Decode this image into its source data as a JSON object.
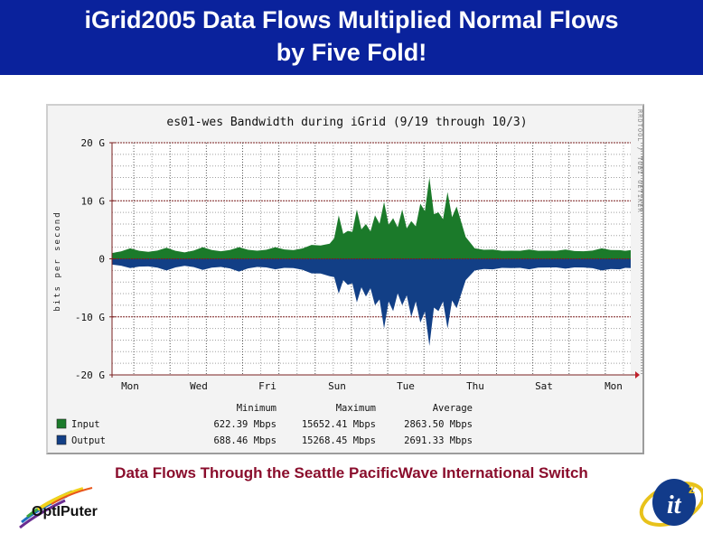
{
  "header": {
    "title_line1": "iGrid2005 Data Flows Multiplied Normal Flows",
    "title_line2": "by Five Fold!",
    "background": "#0a229c"
  },
  "caption": "Data Flows Through the Seattle PacificWave International Switch",
  "logos": {
    "left": "OptIPuter",
    "right": "it",
    "right_superscript": "2"
  },
  "chart_data": {
    "type": "area",
    "title": "es01-wes Bandwidth during iGrid (9/19 through 10/3)",
    "ylabel": "bits per second",
    "xlabel": "",
    "watermark": "RRDTOOL / TOBI OETIKER",
    "ylim": [
      -20,
      20
    ],
    "y_unit": "G",
    "y_ticks": [
      {
        "value": 20,
        "label": "20 G"
      },
      {
        "value": 10,
        "label": "10 G"
      },
      {
        "value": 0,
        "label": "0"
      },
      {
        "value": -10,
        "label": "-10 G"
      },
      {
        "value": -20,
        "label": "-20 G"
      }
    ],
    "x_ticks": [
      "Mon",
      "Wed",
      "Fri",
      "Sun",
      "Tue",
      "Thu",
      "Sat",
      "Mon"
    ],
    "grid": true,
    "colors": {
      "input": "#1b7a2a",
      "output": "#123f86",
      "grid": "#a0a0a0",
      "major_grid": "#7a1f1f"
    },
    "x_days": [
      0,
      0.5,
      1,
      1.5,
      2,
      2.5,
      3,
      3.5,
      4,
      4.5,
      5,
      5.5,
      6,
      6.25,
      6.5,
      6.75,
      7,
      7.25,
      7.5,
      7.75,
      8,
      8.25,
      8.5,
      8.75,
      9,
      9.25,
      9.5,
      10,
      10.5,
      11,
      11.5,
      12,
      12.5,
      13,
      13.5,
      14,
      14.3
    ],
    "series": [
      {
        "name": "Input",
        "values": [
          1.0,
          1.8,
          1.2,
          1.9,
          1.1,
          2.0,
          1.3,
          2.0,
          1.4,
          2.0,
          1.5,
          2.4,
          2.6,
          7.5,
          4.8,
          8.5,
          6.0,
          7.5,
          9.8,
          7.0,
          8.5,
          6.5,
          9.5,
          14.0,
          8.0,
          11.5,
          9.0,
          1.8,
          1.6,
          1.4,
          1.6,
          1.4,
          1.6,
          1.3,
          1.8,
          1.5,
          1.5
        ],
        "stats": {
          "minimum": "622.39 Mbps",
          "maximum": "15652.41 Mbps",
          "average": "2863.50 Mbps"
        }
      },
      {
        "name": "Output",
        "values": [
          -1.0,
          -1.6,
          -1.3,
          -2.0,
          -1.2,
          -1.9,
          -1.4,
          -2.2,
          -1.4,
          -1.8,
          -1.6,
          -2.5,
          -3.0,
          -6.0,
          -4.5,
          -7.5,
          -6.5,
          -8.0,
          -12.0,
          -9.0,
          -8.0,
          -10.0,
          -11.0,
          -15.0,
          -9.0,
          -12.0,
          -8.5,
          -2.0,
          -1.8,
          -1.6,
          -1.8,
          -1.5,
          -1.7,
          -1.5,
          -2.0,
          -1.8,
          -1.6
        ],
        "stats": {
          "minimum": "688.46 Mbps",
          "maximum": "15268.45 Mbps",
          "average": "2691.33 Mbps"
        }
      }
    ],
    "legend": {
      "headers": [
        "Minimum",
        "Maximum",
        "Average"
      ],
      "rows": [
        {
          "label": "Input",
          "color": "#1b7a2a",
          "minimum": "622.39 Mbps",
          "maximum": "15652.41 Mbps",
          "average": "2863.50 Mbps"
        },
        {
          "label": "Output",
          "color": "#123f86",
          "minimum": "688.46 Mbps",
          "maximum": "15268.45 Mbps",
          "average": "2691.33 Mbps"
        }
      ]
    }
  }
}
